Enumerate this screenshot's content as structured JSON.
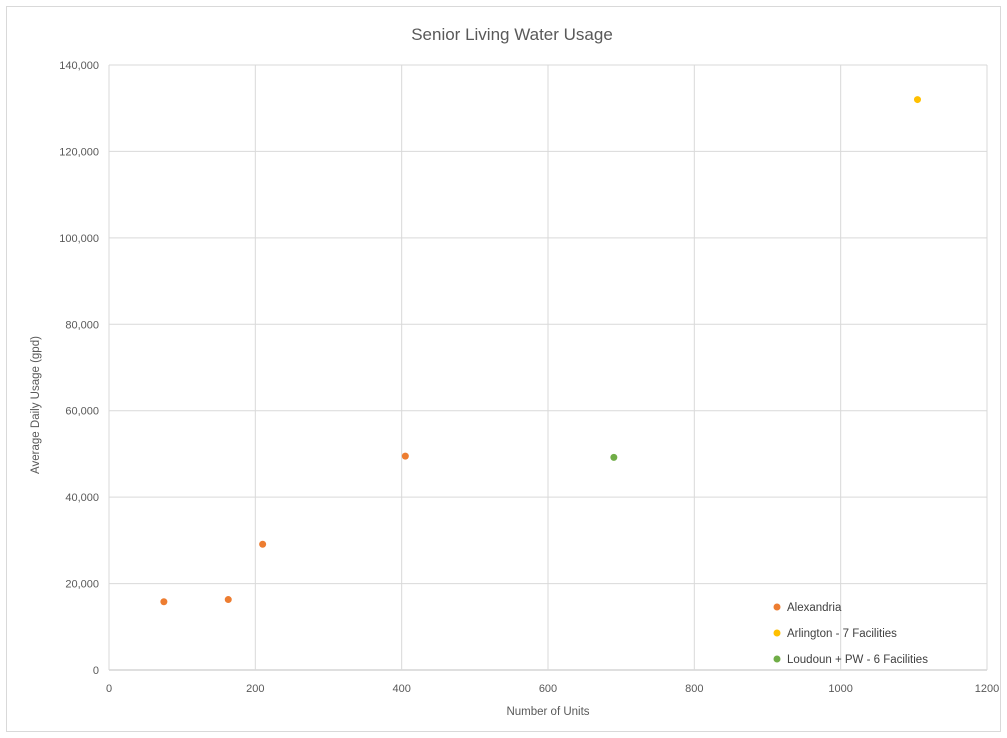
{
  "chart_data": {
    "type": "scatter",
    "title": "Senior Living Water Usage",
    "xlabel": "Number of Units",
    "ylabel": "Average Daily Usage (gpd)",
    "xlim": [
      0,
      1200
    ],
    "ylim": [
      0,
      140000
    ],
    "x_ticks": [
      "0",
      "200",
      "400",
      "600",
      "800",
      "1000",
      "1200"
    ],
    "y_ticks": [
      "0",
      "20,000",
      "40,000",
      "60,000",
      "80,000",
      "100,000",
      "120,000",
      "140,000"
    ],
    "grid": true,
    "legend_position": "bottom-right",
    "series": [
      {
        "name": "Alexandria",
        "color": "#ed7d31",
        "points": [
          {
            "x": 75,
            "y": 15800
          },
          {
            "x": 163,
            "y": 16300
          },
          {
            "x": 210,
            "y": 29100
          },
          {
            "x": 405,
            "y": 49500
          }
        ]
      },
      {
        "name": "Arlington - 7 Facilities",
        "color": "#ffc000",
        "points": [
          {
            "x": 1105,
            "y": 132000
          }
        ]
      },
      {
        "name": "Loudoun + PW - 6 Facilities",
        "color": "#70ad47",
        "points": [
          {
            "x": 690,
            "y": 49200
          }
        ]
      }
    ]
  }
}
